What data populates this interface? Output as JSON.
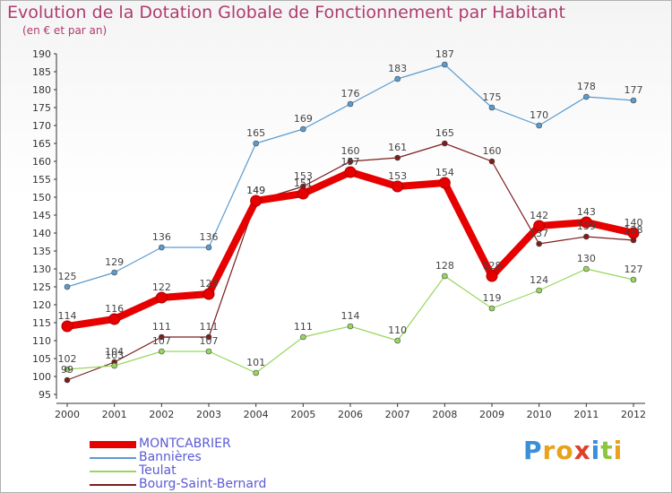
{
  "chart_data": {
    "type": "line",
    "title": "Evolution de la Dotation Globale de Fonctionnement par Habitant",
    "subtitle": "(en € et par an)",
    "x": [
      "2000",
      "2001",
      "2002",
      "2003",
      "2004",
      "2005",
      "2006",
      "2007",
      "2008",
      "2009",
      "2010",
      "2011",
      "2012"
    ],
    "ylim": [
      95,
      190
    ],
    "yticks": [
      95,
      100,
      105,
      110,
      115,
      120,
      125,
      130,
      135,
      140,
      145,
      150,
      155,
      160,
      165,
      170,
      175,
      180,
      185,
      190
    ],
    "grid": false,
    "series": [
      {
        "name": "MONTCABRIER",
        "color": "#e60000",
        "values": [
          114,
          116,
          122,
          123,
          149,
          151,
          157,
          153,
          154,
          128,
          142,
          143,
          140
        ],
        "labels": [
          "114",
          "116",
          "122",
          "123",
          "149",
          "151",
          "157",
          "153",
          "154",
          "128",
          "142",
          "143",
          "140"
        ]
      },
      {
        "name": "Bannières",
        "color": "#5a9bd0",
        "values": [
          125,
          129,
          136,
          136,
          165,
          169,
          176,
          183,
          187,
          175,
          170,
          178,
          177
        ],
        "labels": [
          "125",
          "129",
          "136",
          "136",
          "165",
          "169",
          "176",
          "183",
          "187",
          "175",
          "170",
          "178",
          "177"
        ]
      },
      {
        "name": "Teulat",
        "color": "#98d65e",
        "values": [
          102,
          103,
          107,
          107,
          101,
          111,
          114,
          110,
          128,
          119,
          124,
          130,
          127
        ],
        "labels": [
          "102",
          "103",
          "107",
          "107",
          "101",
          "111",
          "114",
          "110",
          "128",
          "119",
          "124",
          "130",
          "127"
        ]
      },
      {
        "name": "Bourg-Saint-Bernard",
        "color": "#7a1e1e",
        "values": [
          99,
          104,
          111,
          111,
          149,
          153,
          160,
          161,
          165,
          160,
          137,
          139,
          138
        ],
        "labels": [
          "99",
          "104",
          "111",
          "111",
          "149",
          "153",
          "160",
          "161",
          "165",
          "160",
          "137",
          "139",
          "138"
        ]
      }
    ]
  },
  "logo": {
    "text": "Proxiti"
  }
}
